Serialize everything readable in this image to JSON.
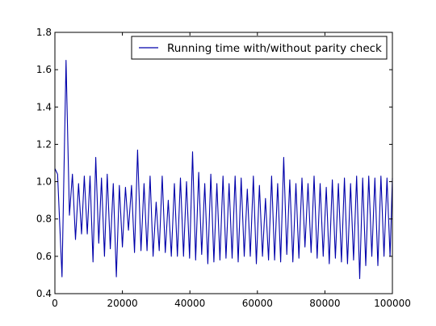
{
  "chart_data": {
    "type": "line",
    "title": "",
    "xlabel": "",
    "ylabel": "",
    "xlim": [
      0,
      100000
    ],
    "ylim": [
      0.4,
      1.8
    ],
    "xticks": [
      0,
      20000,
      40000,
      60000,
      80000,
      100000
    ],
    "xtick_labels": [
      "0",
      "20000",
      "40000",
      "60000",
      "80000",
      "100000"
    ],
    "yticks": [
      0.4,
      0.6,
      0.8,
      1.0,
      1.2,
      1.4,
      1.6,
      1.8
    ],
    "ytick_labels": [
      "0.4",
      "0.6",
      "0.8",
      "1.0",
      "1.2",
      "1.4",
      "1.6",
      "1.8"
    ],
    "grid": false,
    "legend_position": "top-right",
    "series": [
      {
        "name": "Running time with/without parity check",
        "color": "#0000aa",
        "x": [
          0,
          800,
          2100,
          3300,
          4300,
          5200,
          6100,
          7000,
          7900,
          8700,
          9600,
          10400,
          11300,
          12100,
          13000,
          13800,
          14700,
          15500,
          16400,
          17300,
          18200,
          19100,
          20000,
          20900,
          21800,
          22700,
          23600,
          24500,
          25500,
          26400,
          27300,
          28200,
          29100,
          30000,
          30900,
          31800,
          32700,
          33600,
          34500,
          35400,
          36300,
          37200,
          38100,
          39000,
          39900,
          40800,
          41700,
          42600,
          43500,
          44400,
          45300,
          46200,
          47100,
          48000,
          48900,
          49800,
          50700,
          51600,
          52500,
          53400,
          54300,
          55200,
          56100,
          57000,
          57900,
          58800,
          59700,
          60600,
          61500,
          62400,
          63300,
          64200,
          65100,
          66000,
          66900,
          67800,
          68700,
          69600,
          70500,
          71400,
          72300,
          73200,
          74100,
          75000,
          75900,
          76800,
          77700,
          78600,
          79500,
          80400,
          81300,
          82200,
          83100,
          84000,
          84900,
          85800,
          86700,
          87600,
          88500,
          89400,
          90300,
          91200,
          92100,
          93000,
          93900,
          94800,
          95700,
          96600,
          97500,
          98400,
          99300,
          100000
        ],
        "y": [
          1.07,
          1.04,
          0.49,
          1.65,
          0.82,
          1.04,
          0.69,
          0.99,
          0.72,
          1.03,
          0.72,
          1.03,
          0.57,
          1.13,
          0.67,
          1.02,
          0.6,
          1.04,
          0.64,
          0.99,
          0.49,
          0.98,
          0.65,
          0.97,
          0.74,
          0.98,
          0.62,
          1.17,
          0.63,
          0.99,
          0.63,
          1.03,
          0.6,
          0.89,
          0.63,
          1.03,
          0.62,
          0.9,
          0.6,
          0.99,
          0.6,
          1.02,
          0.6,
          1.0,
          0.59,
          1.16,
          0.58,
          1.05,
          0.61,
          0.99,
          0.56,
          1.04,
          0.57,
          0.99,
          0.58,
          1.03,
          0.59,
          0.99,
          0.59,
          1.03,
          0.57,
          1.02,
          0.6,
          0.96,
          0.6,
          1.03,
          0.56,
          0.98,
          0.6,
          0.91,
          0.58,
          1.03,
          0.58,
          0.99,
          0.57,
          1.13,
          0.61,
          1.01,
          0.57,
          0.99,
          0.59,
          1.02,
          0.65,
          0.99,
          0.62,
          1.03,
          0.59,
          0.99,
          0.6,
          0.97,
          0.56,
          1.01,
          0.59,
          0.99,
          0.57,
          1.02,
          0.56,
          0.99,
          0.58,
          1.03,
          0.48,
          1.02,
          0.55,
          1.03,
          0.6,
          1.02,
          0.55,
          1.03,
          0.6,
          1.02,
          0.6,
          1.02
        ]
      }
    ]
  }
}
